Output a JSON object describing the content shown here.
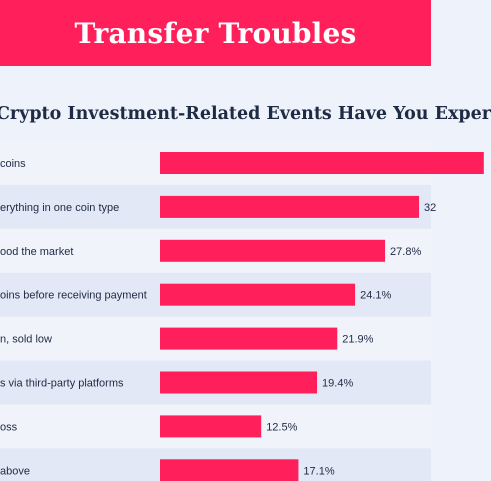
{
  "header": {
    "title": "Transfer Troubles",
    "subtitle": "Crypto Investment-Related Events Have You Exper"
  },
  "colors": {
    "accent": "#ff1f5a",
    "text": "#1f2a44",
    "background": "#eef2fa",
    "row_alt": "#e2e8f5"
  },
  "chart_data": {
    "type": "bar",
    "orientation": "horizontal",
    "title": "Crypto Investment-Related Events Have You Exper",
    "categories": [
      "coins",
      "erything in one coin type",
      "ood the market",
      "oins before receiving payment",
      "n, sold low",
      "s via third-party platforms",
      "oss",
      "above"
    ],
    "value_labels": [
      "",
      "32",
      "27.8%",
      "24.1%",
      "21.9%",
      "19.4%",
      "12.5%",
      "17.1%"
    ],
    "values": [
      40.0,
      32.0,
      27.8,
      24.1,
      21.9,
      19.4,
      12.5,
      17.1
    ],
    "unit": "%",
    "grid": false,
    "legend": "none"
  }
}
